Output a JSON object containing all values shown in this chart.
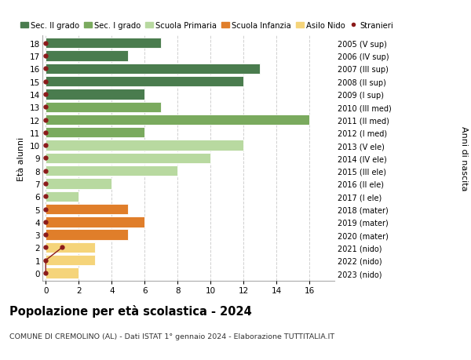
{
  "ages": [
    18,
    17,
    16,
    15,
    14,
    13,
    12,
    11,
    10,
    9,
    8,
    7,
    6,
    5,
    4,
    3,
    2,
    1,
    0
  ],
  "years": [
    "2005 (V sup)",
    "2006 (IV sup)",
    "2007 (III sup)",
    "2008 (II sup)",
    "2009 (I sup)",
    "2010 (III med)",
    "2011 (II med)",
    "2012 (I med)",
    "2013 (V ele)",
    "2014 (IV ele)",
    "2015 (III ele)",
    "2016 (II ele)",
    "2017 (I ele)",
    "2018 (mater)",
    "2019 (mater)",
    "2020 (mater)",
    "2021 (nido)",
    "2022 (nido)",
    "2023 (nido)"
  ],
  "values": [
    7,
    5,
    13,
    12,
    6,
    7,
    16,
    6,
    12,
    10,
    8,
    4,
    2,
    5,
    6,
    5,
    3,
    3,
    2
  ],
  "bar_colors": [
    "#4a7c4e",
    "#4a7c4e",
    "#4a7c4e",
    "#4a7c4e",
    "#4a7c4e",
    "#7aaa5e",
    "#7aaa5e",
    "#7aaa5e",
    "#b8d9a0",
    "#b8d9a0",
    "#b8d9a0",
    "#b8d9a0",
    "#b8d9a0",
    "#e07e2a",
    "#e07e2a",
    "#e07e2a",
    "#f5d47a",
    "#f5d47a",
    "#f5d47a"
  ],
  "legend_labels": [
    "Sec. II grado",
    "Sec. I grado",
    "Scuola Primaria",
    "Scuola Infanzia",
    "Asilo Nido",
    "Stranieri"
  ],
  "legend_colors": [
    "#4a7c4e",
    "#7aaa5e",
    "#b8d9a0",
    "#e07e2a",
    "#f5d47a",
    "#8b1a1a"
  ],
  "title": "Popolazione per età scolastica - 2024",
  "subtitle": "COMUNE DI CREMOLINO (AL) - Dati ISTAT 1° gennaio 2024 - Elaborazione TUTTITALIA.IT",
  "ylabel_left": "Età alunni",
  "ylabel_right": "Anni di nascita",
  "bg_color": "#ffffff",
  "plot_bg_color": "#ffffff",
  "grid_color": "#d0d0d0",
  "bar_height": 0.82,
  "stranieri_color": "#8b1a1a",
  "stranieri_line_ages": [
    0,
    1,
    2
  ],
  "stranieri_line_vals": [
    0,
    0,
    1
  ],
  "xticks": [
    0,
    2,
    4,
    6,
    8,
    10,
    12,
    14,
    16
  ],
  "xlim": [
    -0.2,
    17.5
  ],
  "ylim": [
    -0.6,
    18.6
  ]
}
